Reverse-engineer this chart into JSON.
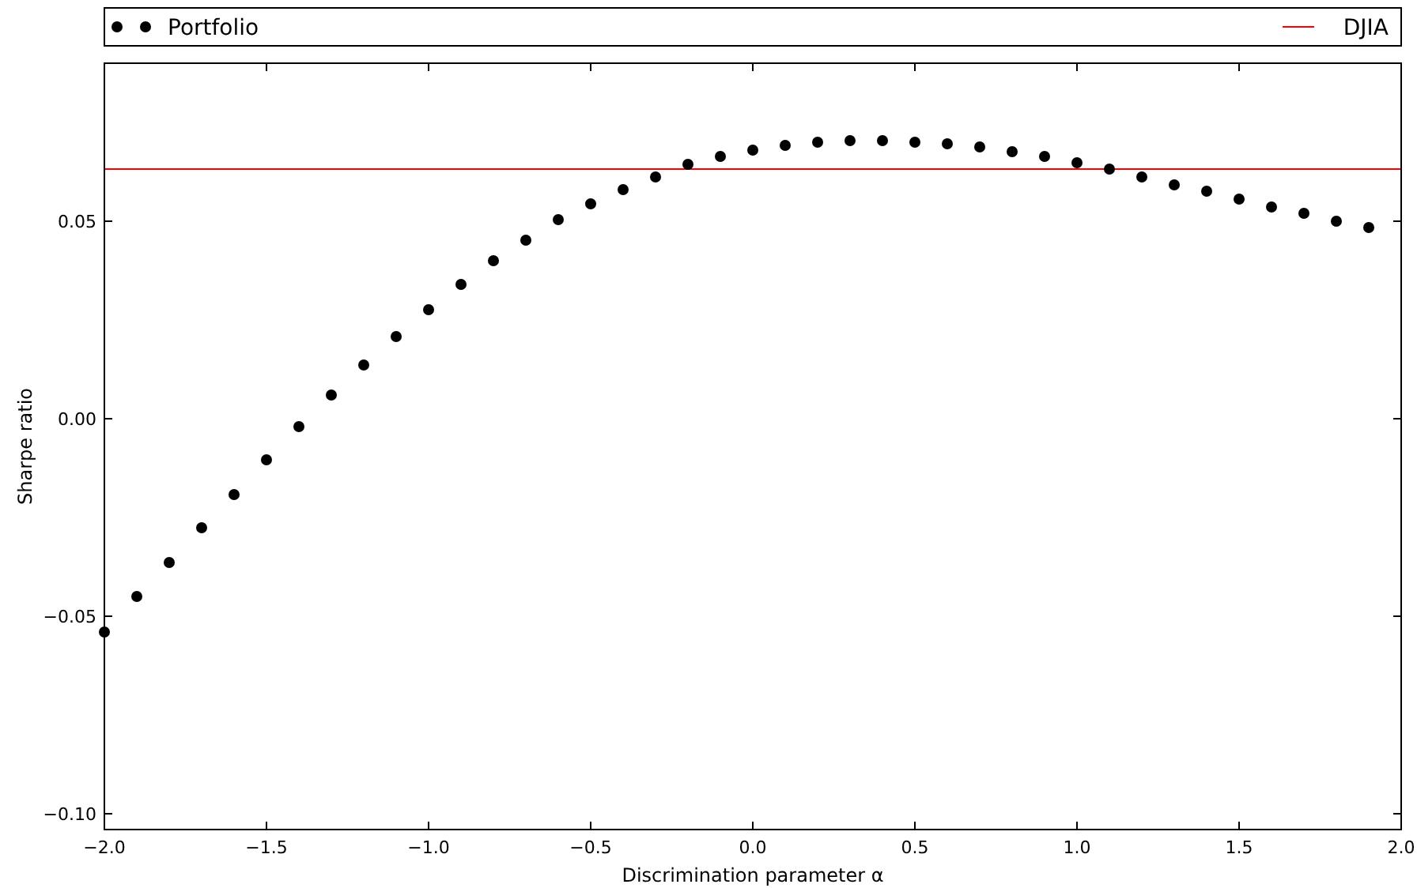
{
  "chart_data": {
    "type": "scatter",
    "xlabel": "Discrimination parameter α",
    "ylabel": "Sharpe ratio",
    "x": [
      -2.0,
      -1.9,
      -1.8,
      -1.7,
      -1.6,
      -1.5,
      -1.4,
      -1.3,
      -1.2,
      -1.1,
      -1.0,
      -0.9,
      -0.8,
      -0.7,
      -0.6,
      -0.5,
      -0.4,
      -0.3,
      -0.2,
      -0.1,
      0.0,
      0.1,
      0.2,
      0.3,
      0.4,
      0.5,
      0.6,
      0.7,
      0.8,
      0.9,
      1.0,
      1.1,
      1.2,
      1.3,
      1.4,
      1.5,
      1.6,
      1.7,
      1.8,
      1.9
    ],
    "series": [
      {
        "name": "Portfolio",
        "color": "#000000",
        "values": [
          -0.054,
          -0.045,
          -0.0364,
          -0.0276,
          -0.0192,
          -0.0104,
          -0.002,
          0.006,
          0.0136,
          0.0208,
          0.0276,
          0.034,
          0.04,
          0.0452,
          0.0504,
          0.0544,
          0.058,
          0.0612,
          0.0644,
          0.0664,
          0.068,
          0.0692,
          0.07,
          0.0704,
          0.0704,
          0.07,
          0.0696,
          0.0688,
          0.0676,
          0.0664,
          0.0648,
          0.0632,
          0.0612,
          0.0592,
          0.0576,
          0.0556,
          0.0536,
          0.052,
          0.05,
          0.0484
        ]
      }
    ],
    "ref_lines": [
      {
        "axis": "y",
        "value": 0.0632,
        "label": "DJIA",
        "color": "#ff0000"
      }
    ],
    "xlim": [
      -2.0,
      2.0
    ],
    "xticks": [
      {
        "value": -2.0,
        "label": "−2.0"
      },
      {
        "value": -1.5,
        "label": "−1.5"
      },
      {
        "value": -1.0,
        "label": "−1.0"
      },
      {
        "value": -0.5,
        "label": "−0.5"
      },
      {
        "value": 0.0,
        "label": "0.0"
      },
      {
        "value": 0.5,
        "label": "0.5"
      },
      {
        "value": 1.0,
        "label": "1.0"
      },
      {
        "value": 1.5,
        "label": "1.5"
      },
      {
        "value": 2.0,
        "label": "2.0"
      }
    ],
    "ylim": [
      -0.104,
      0.09
    ],
    "yticks": [
      {
        "value": -0.1,
        "label": "−0.10"
      },
      {
        "value": -0.05,
        "label": "−0.05"
      },
      {
        "value": 0.0,
        "label": "0.00"
      },
      {
        "value": 0.05,
        "label": "0.05"
      }
    ],
    "marker": "circle",
    "legend": "top",
    "grid": false
  }
}
